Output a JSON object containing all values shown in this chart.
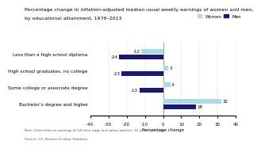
{
  "title_line1": "Percentage change in inflation-adjusted median usual weekly earnings of women and men,",
  "title_line2": "by educational attainment, 1979–2013",
  "categories": [
    "Less than a high school diploma",
    "High school graduates, no college",
    "Some college or associate degree",
    "Bachelor’s degree and higher"
  ],
  "women_values": [
    -12,
    3,
    4,
    32
  ],
  "men_values": [
    -24,
    -23,
    -13,
    18
  ],
  "women_color": "#add8e6",
  "men_color": "#191970",
  "xlabel": "Percentage change",
  "xlim": [
    -40,
    40
  ],
  "xticks": [
    -40,
    -30,
    -20,
    -10,
    0,
    10,
    20,
    30,
    40
  ],
  "note": "Note: Data relate to earnings of full-time wage and salary workers, 25 years and older.",
  "source": "Source: U.S. Bureau of Labor Statistics.",
  "legend_women": "Women",
  "legend_men": "Men"
}
